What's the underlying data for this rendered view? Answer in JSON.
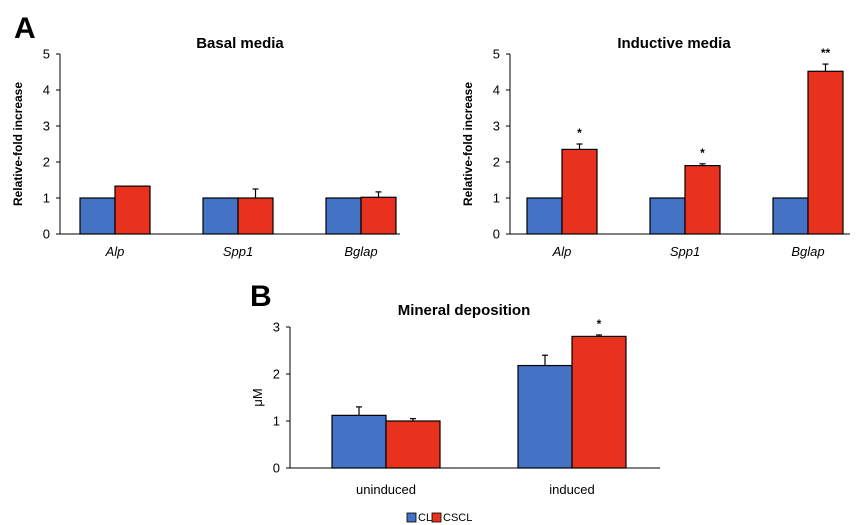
{
  "panel_labels": {
    "a": "A",
    "b": "B"
  },
  "colors": {
    "CL": "#4472C4",
    "CSCL": "#E8321E",
    "error": "#000000"
  },
  "legend": [
    "CL",
    "CSCL"
  ],
  "chart_data": [
    {
      "id": "basal",
      "type": "bar",
      "title": "Basal media",
      "ylabel": "Relative-fold increase",
      "ylim": [
        0,
        5
      ],
      "yticks": [
        "0",
        "1",
        "2",
        "3",
        "4",
        "5"
      ],
      "categories": [
        "Alp",
        "Spp1",
        "Bglap"
      ],
      "italic_categories": true,
      "series": [
        {
          "name": "CL",
          "values": [
            1.0,
            1.0,
            1.0
          ],
          "errors": [
            0,
            0,
            0
          ]
        },
        {
          "name": "CSCL",
          "values": [
            1.33,
            1.0,
            1.02
          ],
          "errors": [
            0,
            0.25,
            0.15
          ]
        }
      ],
      "significance": [
        "",
        "",
        ""
      ]
    },
    {
      "id": "inductive",
      "type": "bar",
      "title": "Inductive media",
      "ylabel": "Relative-fold increase",
      "ylim": [
        0,
        5
      ],
      "yticks": [
        "0",
        "1",
        "2",
        "3",
        "4",
        "5"
      ],
      "categories": [
        "Alp",
        "Spp1",
        "Bglap"
      ],
      "italic_categories": true,
      "series": [
        {
          "name": "CL",
          "values": [
            1.0,
            1.0,
            1.0
          ],
          "errors": [
            0,
            0,
            0
          ]
        },
        {
          "name": "CSCL",
          "values": [
            2.35,
            1.9,
            4.52
          ],
          "errors": [
            0.15,
            0.05,
            0.2
          ]
        }
      ],
      "significance": [
        "*",
        "*",
        "**"
      ]
    },
    {
      "id": "mineral",
      "type": "bar",
      "title": "Mineral deposition",
      "ylabel": "μM",
      "ylim": [
        0,
        3
      ],
      "yticks": [
        "0",
        "1",
        "2",
        "3"
      ],
      "categories": [
        "uninduced",
        "induced"
      ],
      "italic_categories": false,
      "series": [
        {
          "name": "CL",
          "values": [
            1.12,
            2.18
          ],
          "errors": [
            0.18,
            0.22
          ]
        },
        {
          "name": "CSCL",
          "values": [
            1.0,
            2.8
          ],
          "errors": [
            0.05,
            0.03
          ]
        }
      ],
      "significance": [
        "",
        "*"
      ]
    }
  ]
}
